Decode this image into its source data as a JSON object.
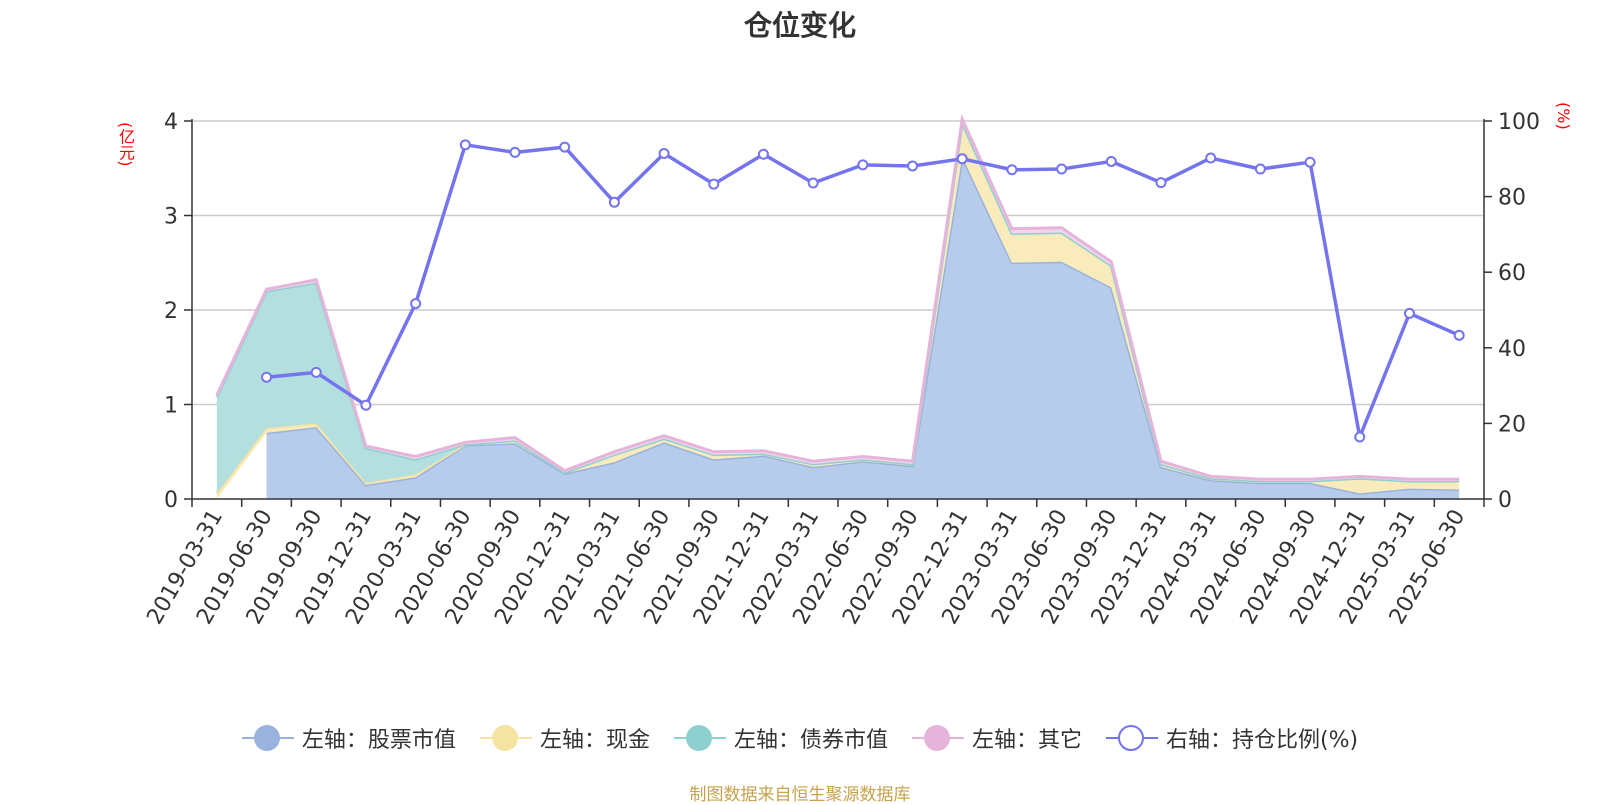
{
  "title": "仓位变化",
  "left_unit": "(亿元)",
  "right_unit": "(%)",
  "source": "制图数据来自恒生聚源数据库",
  "legend": [
    {
      "label": "左轴：股票市值",
      "color": "#9ab3de",
      "hollow": false
    },
    {
      "label": "左轴：现金",
      "color": "#f5e3a2",
      "hollow": false
    },
    {
      "label": "左轴：债券市值",
      "color": "#8ed0cf",
      "hollow": false
    },
    {
      "label": "左轴：其它",
      "color": "#e6b4db",
      "hollow": false
    },
    {
      "label": "右轴：持仓比例(%)",
      "color": "#7474ee",
      "hollow": true
    }
  ],
  "chart_data": {
    "type": "area",
    "x": [
      "2019-03-31",
      "2019-06-30",
      "2019-09-30",
      "2019-12-31",
      "2020-03-31",
      "2020-06-30",
      "2020-09-30",
      "2020-12-31",
      "2021-03-31",
      "2021-06-30",
      "2021-09-30",
      "2021-12-31",
      "2022-03-31",
      "2022-06-30",
      "2022-09-30",
      "2022-12-31",
      "2023-03-31",
      "2023-06-30",
      "2023-09-30",
      "2023-12-31",
      "2024-03-31",
      "2024-06-30",
      "2024-09-30",
      "2024-12-31",
      "2025-03-31",
      "2025-06-30"
    ],
    "left_axis": {
      "ylim": [
        0,
        4
      ],
      "ticks": [
        0,
        1,
        2,
        3,
        4
      ]
    },
    "right_axis": {
      "ylim": [
        0,
        100
      ],
      "ticks": [
        0,
        20,
        40,
        60,
        80,
        100
      ]
    },
    "series": [
      {
        "name": "左轴：股票市值",
        "axis": "left",
        "color": "#b7cbea",
        "line": "#9ab3de",
        "values": [
          0,
          0.7,
          0.76,
          0.15,
          0.23,
          0.57,
          0.59,
          0.27,
          0.39,
          0.6,
          0.42,
          0.46,
          0.34,
          0.4,
          0.35,
          3.62,
          2.5,
          2.51,
          2.24,
          0.34,
          0.2,
          0.17,
          0.17,
          0.06,
          0.11,
          0.1
        ]
      },
      {
        "name": "左轴：现金",
        "axis": "left",
        "color": "#f9ebbc",
        "line": "#f5e3a2",
        "values": [
          0.06,
          0.05,
          0.04,
          0.02,
          0.03,
          0.01,
          0.03,
          0.01,
          0.08,
          0.04,
          0.05,
          0.02,
          0.03,
          0.02,
          0.02,
          0.36,
          0.31,
          0.31,
          0.23,
          0.03,
          0.02,
          0.02,
          0.02,
          0.16,
          0.08,
          0.09
        ]
      },
      {
        "name": "左轴：债券市值",
        "axis": "left",
        "color": "#b3e0de",
        "line": "#8ed0cf",
        "values": [
          1.02,
          1.45,
          1.49,
          0.37,
          0.16,
          0,
          0,
          0,
          0,
          0,
          0,
          0,
          0,
          0,
          0,
          0,
          0,
          0,
          0,
          0,
          0,
          0,
          0,
          0,
          0,
          0
        ]
      },
      {
        "name": "左轴：其它",
        "axis": "left",
        "color": "#f2d7ec",
        "line": "#e6b4db",
        "values": [
          0.02,
          0.02,
          0.03,
          0.02,
          0.03,
          0.02,
          0.03,
          0.02,
          0.03,
          0.03,
          0.03,
          0.03,
          0.03,
          0.03,
          0.03,
          0.04,
          0.05,
          0.05,
          0.04,
          0.03,
          0.02,
          0.02,
          0.02,
          0.02,
          0.02,
          0.02
        ]
      },
      {
        "name": "右轴：持仓比例(%)",
        "axis": "right",
        "color": "#7474ee",
        "values": [
          null,
          32.2,
          33.5,
          24.8,
          51.7,
          93.7,
          91.7,
          93.1,
          78.5,
          91.4,
          83.3,
          91.2,
          83.6,
          88.4,
          88.1,
          90.0,
          87.1,
          87.3,
          89.3,
          83.7,
          90.2,
          87.3,
          89.1,
          16.4,
          49.1,
          43.3
        ]
      }
    ]
  }
}
